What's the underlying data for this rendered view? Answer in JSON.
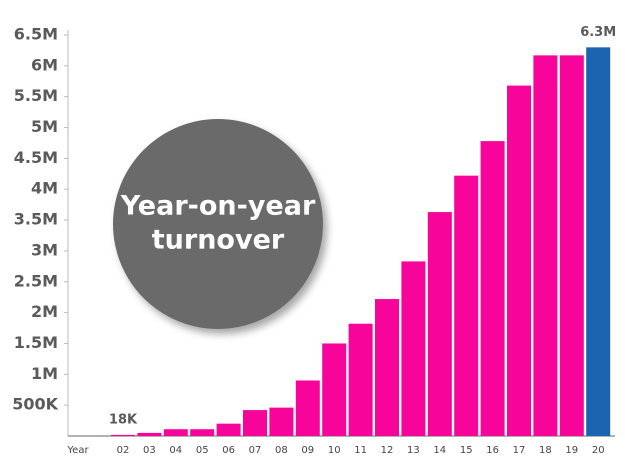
{
  "chart_data": {
    "type": "bar",
    "xlabel": "Year",
    "annotation": [
      "Year-on-year",
      "turnover"
    ],
    "categories": [
      "02",
      "03",
      "04",
      "05",
      "06",
      "07",
      "08",
      "09",
      "10",
      "11",
      "12",
      "13",
      "14",
      "15",
      "16",
      "17",
      "18",
      "19",
      "20"
    ],
    "values": [
      18000,
      50000,
      110000,
      110000,
      200000,
      420000,
      460000,
      900000,
      1500000,
      1820000,
      2220000,
      2830000,
      3630000,
      4220000,
      4780000,
      5680000,
      6170000,
      6170000,
      6300000
    ],
    "value_labels": [
      "18K",
      null,
      null,
      null,
      null,
      null,
      null,
      null,
      null,
      null,
      null,
      null,
      null,
      null,
      null,
      null,
      null,
      null,
      "6.3M"
    ],
    "colors": [
      "#f7059b",
      "#f7059b",
      "#f7059b",
      "#f7059b",
      "#f7059b",
      "#f7059b",
      "#f7059b",
      "#f7059b",
      "#f7059b",
      "#f7059b",
      "#f7059b",
      "#f7059b",
      "#f7059b",
      "#f7059b",
      "#f7059b",
      "#f7059b",
      "#f7059b",
      "#f7059b",
      "#1a64b0"
    ],
    "ylim": [
      0,
      6500000
    ],
    "yticks": [
      {
        "value": 500000,
        "label": "500K"
      },
      {
        "value": 1000000,
        "label": "1M"
      },
      {
        "value": 1500000,
        "label": "1.5M"
      },
      {
        "value": 2000000,
        "label": "2M"
      },
      {
        "value": 2500000,
        "label": "2.5M"
      },
      {
        "value": 3000000,
        "label": "3M"
      },
      {
        "value": 3500000,
        "label": "3.5M"
      },
      {
        "value": 4000000,
        "label": "4M"
      },
      {
        "value": 4500000,
        "label": "4.5M"
      },
      {
        "value": 5000000,
        "label": "5M"
      },
      {
        "value": 5500000,
        "label": "5.5M"
      },
      {
        "value": 6000000,
        "label": "6M"
      },
      {
        "value": 6500000,
        "label": "6.5M"
      }
    ],
    "grid": false
  }
}
